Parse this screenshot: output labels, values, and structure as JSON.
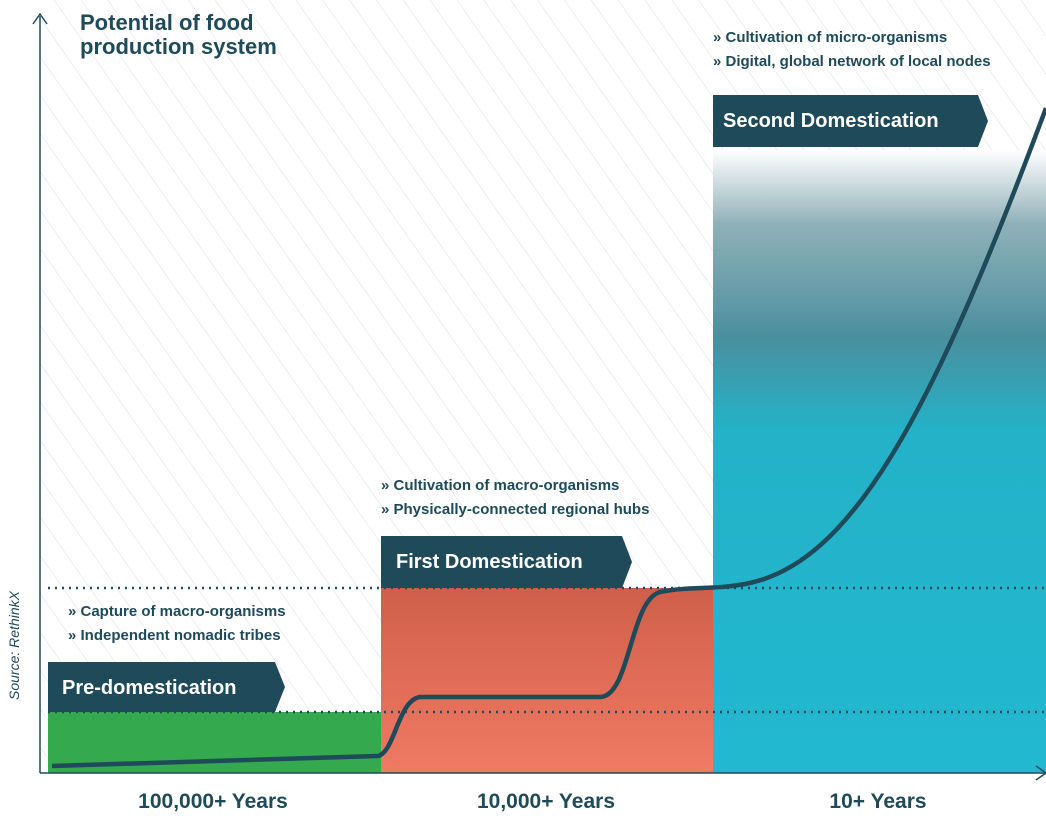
{
  "title": "Potential of food production system",
  "source": "Source: RethinkX",
  "stages": [
    {
      "name": "Pre-domestication",
      "bullets": [
        "» Capture of macro-organisms",
        "» Independent nomadic tribes"
      ],
      "period": "100,000+ Years"
    },
    {
      "name": "First Domestication",
      "bullets": [
        "» Cultivation of macro-organisms",
        "» Physically-connected regional hubs"
      ],
      "period": "10,000+ Years"
    },
    {
      "name": "Second Domestication",
      "bullets": [
        "» Cultivation of micro-organisms",
        "» Digital, global network of local nodes"
      ],
      "period": "10+ Years"
    }
  ]
}
